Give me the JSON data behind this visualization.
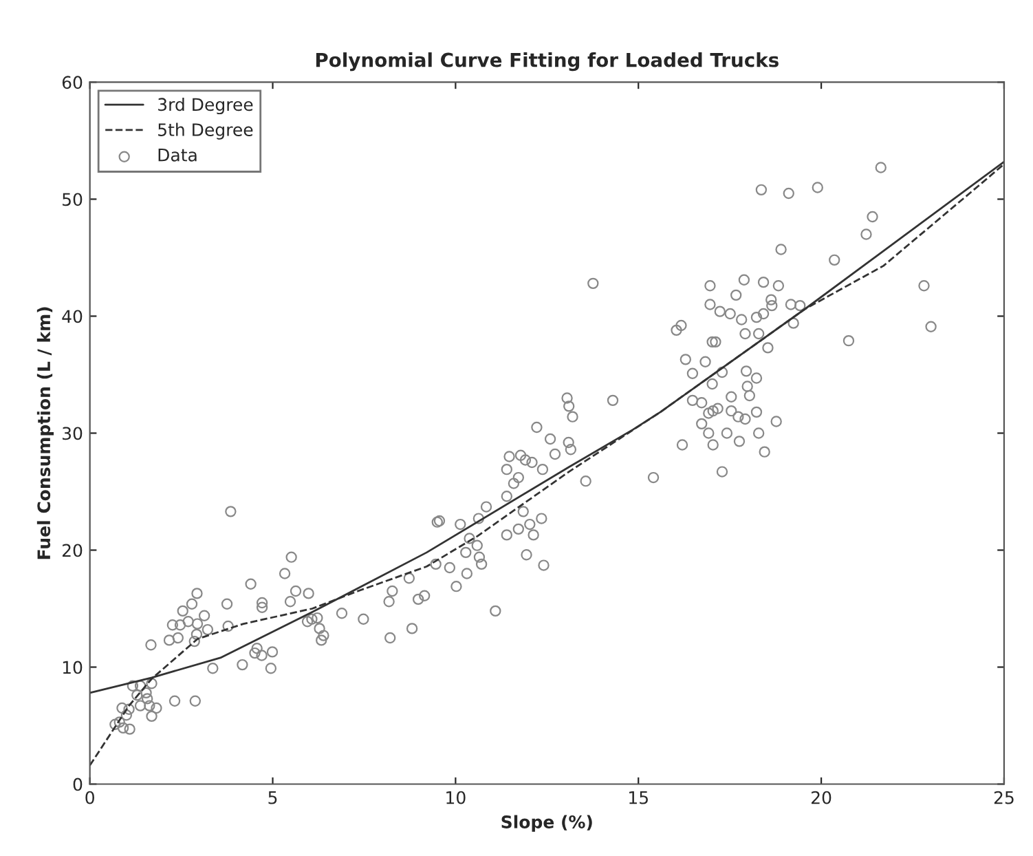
{
  "chart_data": {
    "type": "line",
    "title": "Polynomial Curve Fitting for Loaded Trucks",
    "xlabel": "Slope (%)",
    "ylabel": "Fuel Consumption (L / km)",
    "xlim": [
      0,
      25
    ],
    "xticks": [
      0,
      5,
      10,
      15,
      20,
      25
    ],
    "ylim": [
      0,
      60
    ],
    "yticks": [
      0,
      10,
      20,
      30,
      40,
      50,
      60
    ],
    "grid": false,
    "legend": "top left",
    "series": [
      {
        "name": "3rd Degree",
        "line_style": "solid",
        "marker": "none",
        "color": "#333333",
        "x": [
          0,
          1.69,
          3.57,
          6.08,
          9.21,
          13.1,
          14.85,
          15.6,
          19.55,
          25
        ],
        "values": [
          7.8,
          9.1,
          10.8,
          14.7,
          19.8,
          27.1,
          30.3,
          31.8,
          40.6,
          53.2
        ]
      },
      {
        "name": "5th Degree",
        "line_style": "dashed",
        "marker": "none",
        "color": "#333333",
        "x": [
          0,
          1.07,
          1.69,
          2.94,
          4.2,
          6.08,
          7.33,
          9.21,
          10.6,
          13.1,
          15.6,
          19.55,
          21.7,
          24.4,
          25
        ],
        "values": [
          1.6,
          6.7,
          9.0,
          12.4,
          13.7,
          15.0,
          16.5,
          18.6,
          21.2,
          26.7,
          31.8,
          40.6,
          44.3,
          51.4,
          53.0
        ]
      },
      {
        "name": "Data",
        "type": "scatter",
        "marker": "circle",
        "color": "#888888",
        "x": [
          3.85,
          5.51,
          5.33,
          4.4,
          2.93,
          2.79,
          2.54,
          3.75,
          4.71,
          4.71,
          5.63,
          5.48,
          5.98,
          3.13,
          2.26,
          2.47,
          2.69,
          2.94,
          3.22,
          2.41,
          2.17,
          2.92,
          2.86,
          3.78,
          1.67,
          6.07,
          5.95,
          6.22,
          6.28,
          6.39,
          6.33,
          6.89,
          7.48,
          8.18,
          8.27,
          8.21,
          8.73,
          8.81,
          8.98,
          9.15,
          4.57,
          4.51,
          4.7,
          4.99,
          4.17,
          4.95,
          3.36,
          1.17,
          1.38,
          1.69,
          1.29,
          1.54,
          1.57,
          1.38,
          1.63,
          1.82,
          1.69,
          2.32,
          2.88,
          0.88,
          1.07,
          0.81,
          1.0,
          0.91,
          1.09,
          0.69,
          12.22,
          12.59,
          13.2,
          13.09,
          13.15,
          12.72,
          11.47,
          11.78,
          11.91,
          12.09,
          12.38,
          11.4,
          11.72,
          11.59,
          11.4,
          13.56,
          15.41,
          16.2,
          10.84,
          9.5,
          9.56,
          10.13,
          10.63,
          11.85,
          11.72,
          12.03,
          12.35,
          11.4,
          12.13,
          11.94,
          12.41,
          10.38,
          10.59,
          10.28,
          10.65,
          10.71,
          10.31,
          10.02,
          9.46,
          9.84,
          11.09,
          13.76,
          13.05,
          13.1,
          14.3,
          21.63,
          18.36,
          19.11,
          19.9,
          21.4,
          21.23,
          18.9,
          20.36,
          22.81,
          23.0,
          20.75,
          16.96,
          17.89,
          18.42,
          18.83,
          17.67,
          16.96,
          17.23,
          17.51,
          17.82,
          18.23,
          18.42,
          18.63,
          18.65,
          19.17,
          19.42,
          19.24,
          16.04,
          16.17,
          17.02,
          17.11,
          17.92,
          18.29,
          18.54,
          16.29,
          16.83,
          16.48,
          17.29,
          17.02,
          17.95,
          18.23,
          17.98,
          18.04,
          17.54,
          16.48,
          16.73,
          16.92,
          17.04,
          17.17,
          17.54,
          17.73,
          17.92,
          18.23,
          18.77,
          16.73,
          16.92,
          17.04,
          17.42,
          17.76,
          18.29,
          18.45,
          17.29
        ],
        "values": [
          23.3,
          19.4,
          18.0,
          17.1,
          16.3,
          15.4,
          14.8,
          15.4,
          15.5,
          15.1,
          16.5,
          15.6,
          16.3,
          14.4,
          13.6,
          13.6,
          13.9,
          13.7,
          13.2,
          12.5,
          12.3,
          12.8,
          12.2,
          13.5,
          11.9,
          14.1,
          13.9,
          14.2,
          13.3,
          12.7,
          12.3,
          14.6,
          14.1,
          15.6,
          16.5,
          12.5,
          17.6,
          13.3,
          15.8,
          16.1,
          11.6,
          11.2,
          11.0,
          11.3,
          10.2,
          9.9,
          9.9,
          8.4,
          8.4,
          8.6,
          7.6,
          7.8,
          7.3,
          6.7,
          6.7,
          6.5,
          5.8,
          7.1,
          7.1,
          6.5,
          6.4,
          5.3,
          5.9,
          4.8,
          4.7,
          5.1,
          30.5,
          29.5,
          31.4,
          29.2,
          28.6,
          28.2,
          28.0,
          28.1,
          27.7,
          27.5,
          26.9,
          26.9,
          26.2,
          25.7,
          24.6,
          25.9,
          26.2,
          29.0,
          23.7,
          22.4,
          22.5,
          22.2,
          22.7,
          23.3,
          21.8,
          22.2,
          22.7,
          21.3,
          21.3,
          19.6,
          18.7,
          21.0,
          20.4,
          19.8,
          19.4,
          18.8,
          18.0,
          16.9,
          18.8,
          18.5,
          14.8,
          42.8,
          33.0,
          32.3,
          32.8,
          52.7,
          50.8,
          50.5,
          51.0,
          48.5,
          47.0,
          45.7,
          44.8,
          42.6,
          39.1,
          37.9,
          42.6,
          43.1,
          42.9,
          42.6,
          41.8,
          41.0,
          40.4,
          40.2,
          39.7,
          39.9,
          40.2,
          41.4,
          40.9,
          41.0,
          40.9,
          39.4,
          38.8,
          39.2,
          37.8,
          37.8,
          38.5,
          38.5,
          37.3,
          36.3,
          36.1,
          35.1,
          35.2,
          34.2,
          35.3,
          34.7,
          34.0,
          33.2,
          33.1,
          32.8,
          32.6,
          31.7,
          31.9,
          32.1,
          31.9,
          31.4,
          31.2,
          31.8,
          31.0,
          30.8,
          30.0,
          29.0,
          30.0,
          29.3,
          30.0,
          28.4,
          26.7
        ]
      }
    ]
  }
}
